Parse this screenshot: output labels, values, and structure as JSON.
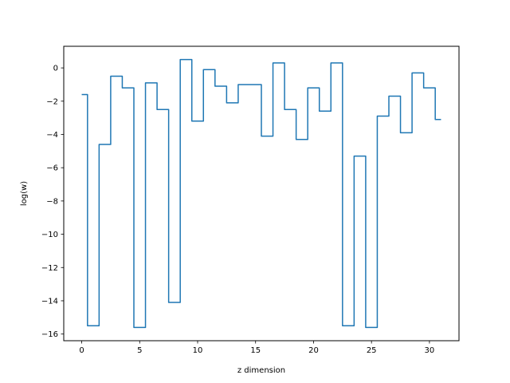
{
  "chart_data": {
    "type": "line",
    "step": "mid",
    "title": "",
    "xlabel": "z dimension",
    "ylabel": "log(w)",
    "grid": false,
    "x": [
      0,
      1,
      2,
      3,
      4,
      5,
      6,
      7,
      8,
      9,
      10,
      11,
      12,
      13,
      14,
      15,
      16,
      17,
      18,
      19,
      20,
      21,
      22,
      23,
      24,
      25,
      26,
      27,
      28,
      29,
      30,
      31
    ],
    "series": [
      {
        "color": "#1f77b4",
        "values": [
          -1.6,
          -15.5,
          -4.6,
          -0.5,
          -1.2,
          -15.6,
          -0.9,
          -2.5,
          -14.1,
          0.5,
          -3.2,
          -0.1,
          -1.1,
          -2.1,
          -1.0,
          -1.0,
          -4.1,
          0.3,
          -2.5,
          -4.3,
          -1.2,
          -2.6,
          0.3,
          -15.5,
          -5.3,
          -15.6,
          -2.9,
          -1.7,
          -3.9,
          -0.3,
          -1.2,
          -3.1
        ]
      }
    ],
    "xlim": [
      -1.55,
      32.55
    ],
    "ylim": [
      -16.4,
      1.3
    ],
    "xticks": [
      0,
      5,
      10,
      15,
      20,
      25,
      30
    ],
    "yticks": [
      0,
      -2,
      -4,
      -6,
      -8,
      -10,
      -12,
      -14,
      -16
    ],
    "xtick_labels": [
      "0",
      "5",
      "10",
      "15",
      "20",
      "25",
      "30"
    ],
    "ytick_labels": [
      "0",
      "−2",
      "−4",
      "−6",
      "−8",
      "−10",
      "−12",
      "−14",
      "−16"
    ]
  }
}
